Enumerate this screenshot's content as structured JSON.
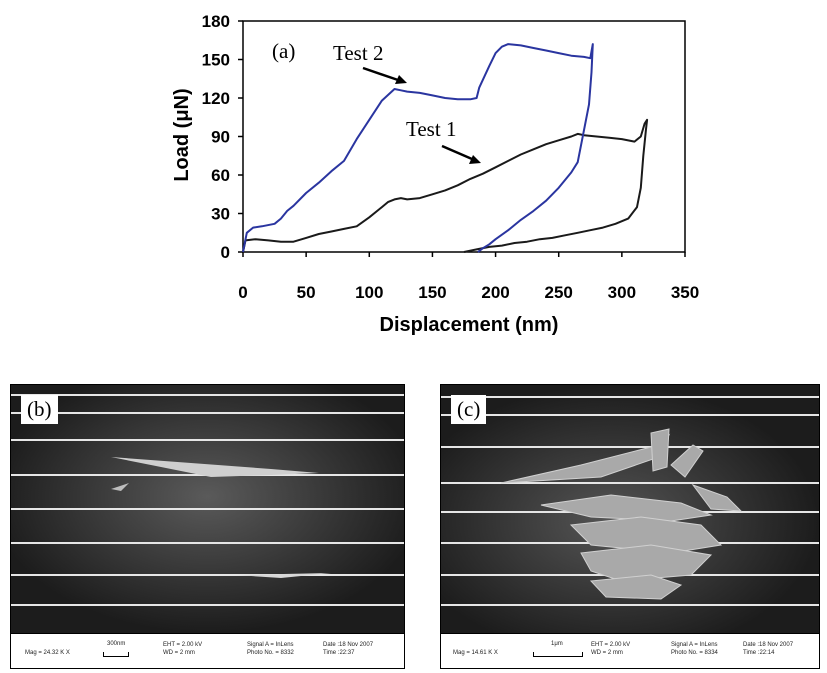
{
  "chart_data": {
    "type": "line",
    "xlabel": "Displacement (nm)",
    "ylabel": "Load (μN)",
    "xlim": [
      0,
      350
    ],
    "ylim": [
      0,
      180
    ],
    "xticks": [
      "0",
      "50",
      "100",
      "150",
      "200",
      "250",
      "300",
      "350"
    ],
    "yticks": [
      "0",
      "30",
      "60",
      "90",
      "120",
      "150",
      "180"
    ],
    "grid": false,
    "annotations": [
      {
        "text": "(a)"
      },
      {
        "text": "Test 2",
        "points_to": [
          130,
          125
        ]
      },
      {
        "text": "Test 1",
        "points_to": [
          190,
          68
        ]
      }
    ],
    "series": [
      {
        "name": "Test 1",
        "color": "#1a1a1a",
        "x": [
          0,
          2,
          10,
          20,
          30,
          40,
          50,
          60,
          70,
          80,
          90,
          100,
          110,
          115,
          120,
          125,
          130,
          140,
          150,
          160,
          170,
          180,
          190,
          200,
          210,
          220,
          230,
          240,
          250,
          260,
          265,
          270,
          280,
          290,
          300,
          310,
          315,
          318,
          320,
          319,
          317,
          315,
          312,
          305,
          295,
          285,
          275,
          265,
          255,
          245,
          235,
          225,
          215,
          205,
          195,
          185,
          175
        ],
        "y": [
          0,
          9,
          10,
          9,
          8,
          8,
          11,
          14,
          16,
          18,
          20,
          27,
          35,
          39,
          41,
          42,
          41,
          42,
          45,
          48,
          52,
          57,
          61,
          66,
          71,
          76,
          80,
          84,
          87,
          90,
          92,
          91,
          90,
          89,
          88,
          86,
          90,
          100,
          103,
          95,
          75,
          50,
          35,
          26,
          22,
          19,
          17,
          15,
          13,
          11,
          10,
          8,
          7,
          5,
          4,
          2,
          0
        ]
      },
      {
        "name": "Test 2",
        "color": "#2a35a0",
        "x": [
          0,
          3,
          8,
          15,
          25,
          30,
          35,
          40,
          50,
          60,
          70,
          80,
          90,
          100,
          110,
          120,
          125,
          130,
          140,
          150,
          160,
          170,
          180,
          185,
          187,
          195,
          200,
          205,
          210,
          220,
          230,
          240,
          250,
          260,
          270,
          275,
          277,
          276,
          274,
          270,
          265,
          260,
          250,
          240,
          230,
          220,
          210,
          200,
          195,
          190,
          186
        ],
        "y": [
          0,
          15,
          19,
          20,
          22,
          26,
          32,
          36,
          46,
          54,
          63,
          71,
          88,
          103,
          118,
          127,
          126,
          125,
          124,
          122,
          120,
          119,
          119,
          120,
          128,
          145,
          155,
          160,
          162,
          161,
          159,
          157,
          155,
          153,
          152,
          151,
          162,
          140,
          115,
          95,
          70,
          62,
          50,
          40,
          32,
          25,
          17,
          10,
          6,
          3,
          0
        ]
      }
    ]
  },
  "panels": {
    "b": {
      "label": "(b)",
      "mag": "Mag =  24.32 K X",
      "scale": "300nm",
      "eht": "EHT =  2.00 kV",
      "wd": "WD  =    2 mm",
      "signal": "Signal A = InLens",
      "photo": "Photo No. = 8332",
      "date": "Date :18 Nov 2007",
      "time": "Time :22:37"
    },
    "c": {
      "label": "(c)",
      "mag": "Mag =  14.61 K X",
      "scale": "1μm",
      "eht": "EHT =  2.00 kV",
      "wd": "WD  =    2 mm",
      "signal": "Signal A = InLens",
      "photo": "Photo No. = 8334",
      "date": "Date :18 Nov 2007",
      "time": "Time :22:14"
    }
  }
}
